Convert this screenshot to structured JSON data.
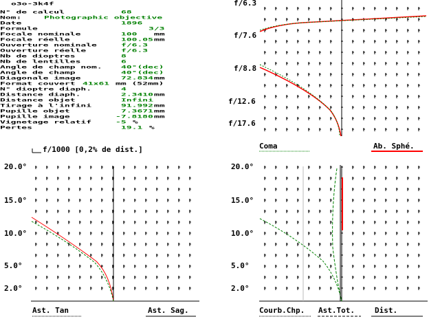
{
  "title": "o3o-3k4f",
  "rows": [
    {
      "label": "N° de calcul",
      "value": "68"
    },
    {
      "label": "Nom:",
      "value": "Photographic objective"
    },
    {
      "label": "Date",
      "value": "1896"
    },
    {
      "label": "Formule",
      "value": "3/3"
    },
    {
      "label": "Focale nominale",
      "value": "100",
      "unit": "mm"
    },
    {
      "label": "Focale réelle",
      "value": "100.05",
      "unit": "mm"
    },
    {
      "label": "Ouverture nominale",
      "value": "f/6.3"
    },
    {
      "label": "Ouverture réelle",
      "value": "f/6.3"
    },
    {
      "label": "Nb de dioptres",
      "value": "8"
    },
    {
      "label": "Nb de lentilles",
      "value": "6"
    },
    {
      "label": "Angle de champ nom.",
      "value": "40°(dec)"
    },
    {
      "label": "Angle de champ",
      "value": "40°(dec)"
    },
    {
      "label": "Diagonale image",
      "value": "72.834",
      "unit": "mm"
    },
    {
      "label": "Format couvert",
      "value": "41x61",
      "unit": "mm (52mm)"
    },
    {
      "label": "N° dioptre diaph.",
      "value": "4"
    },
    {
      "label": "Distance diaph.",
      "value": "2.3410",
      "unit": "mm"
    },
    {
      "label": "Distance objet",
      "value": "Infini"
    },
    {
      "label": "Tirage à l'infini",
      "value": "91.992",
      "unit": "mm"
    },
    {
      "label": "Pupille objet",
      "value": "7.3671",
      "unit": "mm"
    },
    {
      "label": "Pupille image",
      "value": "-7.8180",
      "unit": "mm"
    },
    {
      "label": "Vignetage relatif",
      "value": "-5",
      "unit": " %"
    },
    {
      "label": "Pertes",
      "value": "19.1",
      "unit": " %"
    }
  ],
  "aperture_plot": {
    "ticks": [
      "f/6.3",
      "f/7.6",
      "f/8.8",
      "f/12.6",
      "f/17.6"
    ],
    "legend": [
      "Coma",
      "Ab. Sphé."
    ]
  },
  "scale_note": "f/1000 [0,2% de dist.]",
  "field_ticks": [
    "20.0°",
    "15.0°",
    "10.0°",
    "5.0°",
    "2.0°"
  ],
  "astig_legend": [
    "Ast. Tan",
    "Ast. Sag."
  ],
  "field_legend": [
    "Courb.Chp.",
    "Ast.Tot.",
    "Dist."
  ],
  "colors": {
    "green": "#008000",
    "red": "#ff0000"
  }
}
